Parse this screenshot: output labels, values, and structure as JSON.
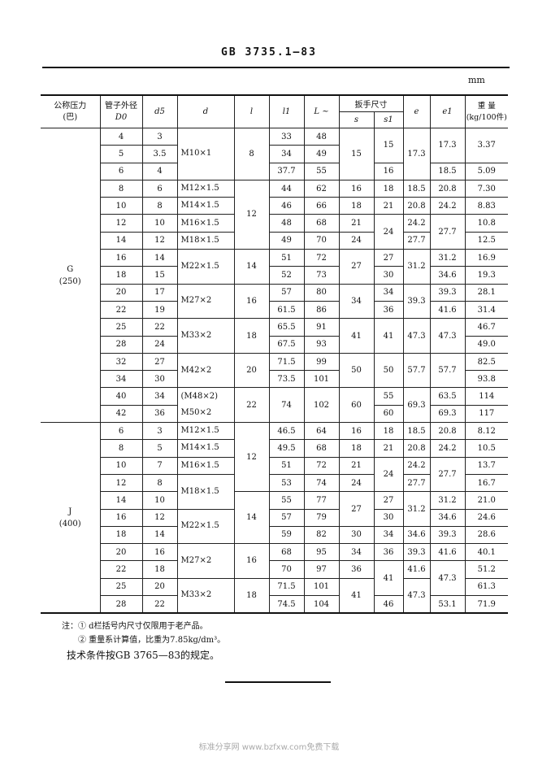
{
  "header": {
    "title": "GB 3735.1—83",
    "unit": "mm"
  },
  "table": {
    "columns": {
      "pressure": "公称压力\n(巴)",
      "D0_label": "管子外径",
      "D0": "D0",
      "d5": "d5",
      "d": "d",
      "l": "l",
      "l1": "l1",
      "L": "L ~",
      "wrench": "扳手尺寸",
      "s": "s",
      "s1": "s1",
      "e": "e",
      "e1": "e1",
      "weight": "重  量\n(kg/100件)"
    },
    "sections": [
      {
        "pressure": "G\n(250)",
        "rows": [
          [
            "4",
            "3",
            [
              "M10×1",
              3
            ],
            [
              "8",
              3
            ],
            "33",
            "48",
            [
              "15",
              3
            ],
            [
              "15",
              2
            ],
            [
              "17.3",
              3
            ],
            [
              "17.3",
              2
            ],
            [
              "3.37",
              2
            ]
          ],
          [
            "5",
            "3.5",
            "34",
            "49"
          ],
          [
            "6",
            "4",
            "37.7",
            "55",
            "16",
            "18.5",
            "5.09"
          ],
          [
            "8",
            "6",
            "M12×1.5",
            [
              "12",
              4
            ],
            "44",
            "62",
            "16",
            "18",
            "18.5",
            "20.8",
            "7.30"
          ],
          [
            "10",
            "8",
            "M14×1.5",
            "46",
            "66",
            "18",
            "21",
            "20.8",
            "24.2",
            "8.83"
          ],
          [
            "12",
            "10",
            "M16×1.5",
            "48",
            "68",
            "21",
            [
              "24",
              2
            ],
            "24.2",
            [
              "27.7",
              2
            ],
            "10.8"
          ],
          [
            "14",
            "12",
            "M18×1.5",
            "49",
            "70",
            "24",
            "27.7",
            "12.5"
          ],
          [
            "16",
            "14",
            [
              "M22×1.5",
              2
            ],
            [
              "14",
              2
            ],
            "51",
            "72",
            [
              "27",
              2
            ],
            "27",
            [
              "31.2",
              2
            ],
            "31.2",
            "16.9"
          ],
          [
            "18",
            "15",
            "52",
            "73",
            "30",
            "34.6",
            "19.3"
          ],
          [
            "20",
            "17",
            [
              "M27×2",
              2
            ],
            [
              "16",
              2
            ],
            "57",
            "80",
            [
              "34",
              2
            ],
            "34",
            [
              "39.3",
              2
            ],
            "39.3",
            "28.1"
          ],
          [
            "22",
            "19",
            "61.5",
            "86",
            "36",
            "41.6",
            "31.4"
          ],
          [
            "25",
            "22",
            [
              "M33×2",
              2
            ],
            [
              "18",
              2
            ],
            "65.5",
            "91",
            [
              "41",
              2
            ],
            [
              "41",
              2
            ],
            [
              "47.3",
              2
            ],
            [
              "47.3",
              2
            ],
            "46.7"
          ],
          [
            "28",
            "24",
            "67.5",
            "93",
            "49.0"
          ],
          [
            "32",
            "27",
            [
              "M42×2",
              2
            ],
            [
              "20",
              2
            ],
            "71.5",
            "99",
            [
              "50",
              2
            ],
            [
              "50",
              2
            ],
            [
              "57.7",
              2
            ],
            [
              "57.7",
              2
            ],
            "82.5"
          ],
          [
            "34",
            "30",
            "73.5",
            "101",
            "93.8"
          ],
          [
            "40",
            "34",
            [
              "(M48×2)\nM50×2",
              2
            ],
            [
              "22",
              2
            ],
            [
              "74",
              2
            ],
            [
              "102",
              2
            ],
            [
              "60",
              2
            ],
            "55",
            [
              "69.3",
              2
            ],
            "63.5",
            "114"
          ],
          [
            "42",
            "36",
            "60",
            "69.3",
            "117"
          ]
        ]
      },
      {
        "pressure": "J\n(400)",
        "rows": [
          [
            "6",
            "3",
            "M12×1.5",
            [
              "12",
              4
            ],
            "46.5",
            "64",
            "16",
            "18",
            "18.5",
            "20.8",
            "8.12"
          ],
          [
            "8",
            "5",
            "M14×1.5",
            "49.5",
            "68",
            "18",
            "21",
            "20.8",
            "24.2",
            "10.5"
          ],
          [
            "10",
            "7",
            "M16×1.5",
            "51",
            "72",
            "21",
            [
              "24",
              2
            ],
            "24.2",
            [
              "27.7",
              2
            ],
            "13.7"
          ],
          [
            "12",
            "8",
            [
              "M18×1.5",
              2
            ],
            "53",
            "74",
            "24",
            "27.7",
            "16.7"
          ],
          [
            "14",
            "10",
            [
              "14",
              3
            ],
            "55",
            "77",
            [
              "27",
              2
            ],
            "27",
            [
              "31.2",
              2
            ],
            "31.2",
            "21.0"
          ],
          [
            "16",
            "12",
            [
              "M22×1.5",
              2
            ],
            "57",
            "79",
            "30",
            "34.6",
            "24.6"
          ],
          [
            "18",
            "14",
            "59",
            "82",
            "30",
            "34",
            "34.6",
            "39.3",
            "28.6"
          ],
          [
            "20",
            "16",
            [
              "M27×2",
              2
            ],
            [
              "16",
              2
            ],
            "68",
            "95",
            "34",
            "36",
            "39.3",
            "41.6",
            "40.1"
          ],
          [
            "22",
            "18",
            "70",
            "97",
            "36",
            [
              "41",
              2
            ],
            "41.6",
            [
              "47.3",
              2
            ],
            "51.2"
          ],
          [
            "25",
            "20",
            [
              "M33×2",
              2
            ],
            [
              "18",
              2
            ],
            "71.5",
            "101",
            [
              "41",
              2
            ],
            [
              "47.3",
              2
            ],
            "61.3"
          ],
          [
            "28",
            "22",
            "74.5",
            "104",
            "46",
            "53.1",
            "71.9"
          ]
        ]
      }
    ]
  },
  "notes": {
    "note1": "注：① d栏括号内尺寸仅限用于老产品。",
    "note2": "② 重量系计算值，比重为7.85kg/dm³。",
    "tech": "技术条件按GB 3765—83的规定。"
  },
  "watermark": "标准分享网 www.bzfxw.com免费下载"
}
